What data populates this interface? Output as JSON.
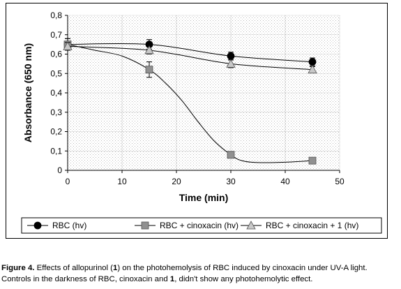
{
  "chart_data": {
    "type": "line",
    "title": "",
    "xlabel": "Time (min)",
    "ylabel": "Absorbance (650 nm)",
    "xlim": [
      0,
      50
    ],
    "ylim": [
      0,
      0.8
    ],
    "xticks": [
      "0",
      "10",
      "20",
      "30",
      "40",
      "50"
    ],
    "yticks": [
      "0",
      "0,1",
      "0,2",
      "0,3",
      "0,4",
      "0,5",
      "0,6",
      "0,7",
      "0,8"
    ],
    "grid": true,
    "legend_position": "bottom",
    "series": [
      {
        "name": "RBC  (hv)",
        "marker": "circle",
        "color": "#000000",
        "x": [
          0,
          15,
          30,
          45
        ],
        "y": [
          0.65,
          0.65,
          0.59,
          0.56
        ],
        "err": [
          0.03,
          0.025,
          0.02,
          0.02
        ]
      },
      {
        "name": "RBC + cinoxacin  (hv)",
        "marker": "square",
        "color": "#909090",
        "x": [
          0,
          15,
          30,
          45
        ],
        "y": [
          0.65,
          0.52,
          0.08,
          0.05
        ],
        "err": [
          0.03,
          0.04,
          0.0,
          0.0
        ],
        "curve": [
          [
            0,
            0.65
          ],
          [
            5,
            0.62
          ],
          [
            10,
            0.59
          ],
          [
            15,
            0.52
          ],
          [
            18,
            0.45
          ],
          [
            21,
            0.36
          ],
          [
            24,
            0.25
          ],
          [
            27,
            0.15
          ],
          [
            30,
            0.08
          ],
          [
            32,
            0.05
          ],
          [
            35,
            0.04
          ],
          [
            40,
            0.042
          ],
          [
            45,
            0.05
          ]
        ]
      },
      {
        "name": "RBC + cinoxacin + 1  (hv)",
        "marker": "triangle",
        "color": "#c8c8c8",
        "x": [
          0,
          15,
          30,
          45
        ],
        "y": [
          0.64,
          0.62,
          0.55,
          0.52
        ],
        "err": [
          0.02,
          0.02,
          0.02,
          0.015
        ]
      }
    ]
  },
  "caption": {
    "label": "Figure 4.",
    "line1_a": " Effects of allopurinol (",
    "compound": "1",
    "line1_b": ") on the photohemolysis of RBC induced by cinoxacin under UV-A light.",
    "line2_a": "Controls in the darkness of RBC, cinoxacin and ",
    "line2_b": ", didn't show any photohemolytic effect."
  }
}
